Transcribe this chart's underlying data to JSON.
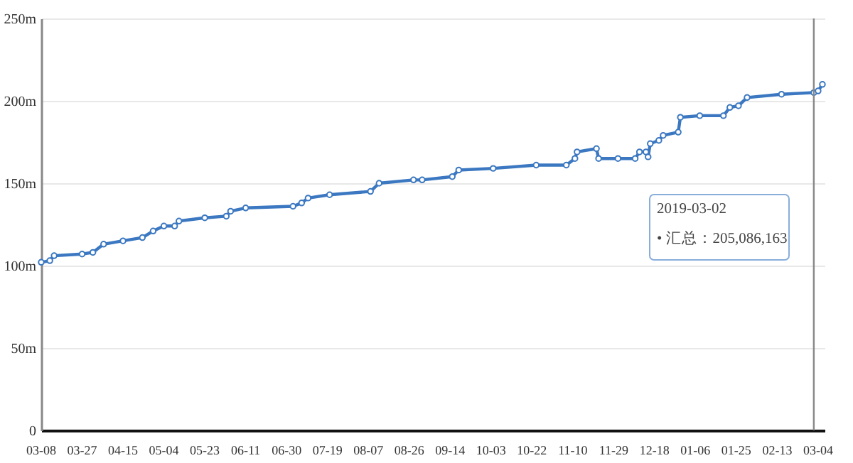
{
  "chart_data": {
    "type": "line",
    "x": [
      "2018-03-08",
      "2018-03-12",
      "2018-03-14",
      "2018-03-27",
      "2018-04-01",
      "2018-04-06",
      "2018-04-15",
      "2018-04-24",
      "2018-04-29",
      "2018-05-04",
      "2018-05-09",
      "2018-05-11",
      "2018-05-23",
      "2018-06-02",
      "2018-06-04",
      "2018-06-11",
      "2018-07-03",
      "2018-07-07",
      "2018-07-10",
      "2018-07-20",
      "2018-08-08",
      "2018-08-12",
      "2018-08-28",
      "2018-09-01",
      "2018-09-15",
      "2018-09-18",
      "2018-10-04",
      "2018-10-24",
      "2018-11-07",
      "2018-11-11",
      "2018-11-12",
      "2018-11-21",
      "2018-11-22",
      "2018-12-01",
      "2018-12-09",
      "2018-12-11",
      "2018-12-14",
      "2018-12-15",
      "2018-12-16",
      "2018-12-20",
      "2018-12-22",
      "2018-12-29",
      "2018-12-30",
      "2019-01-08",
      "2019-01-19",
      "2019-01-22",
      "2019-01-26",
      "2019-01-30",
      "2019-02-15",
      "2019-03-02",
      "2019-03-04",
      "2019-03-06"
    ],
    "series": [
      {
        "color": "#3b78c1",
        "values": [
          102,
          103,
          106,
          107,
          108,
          113,
          115,
          117,
          121,
          124,
          124,
          127,
          129,
          130,
          133,
          135,
          136,
          138,
          141,
          143,
          145,
          150,
          152,
          152,
          154,
          158,
          159,
          161,
          161,
          165,
          169,
          171,
          165,
          165,
          165,
          169,
          169,
          166,
          174,
          176,
          179,
          181,
          190,
          191,
          191,
          196,
          197,
          202,
          204,
          205,
          206,
          210
        ]
      }
    ],
    "xlim": [
      "2018-03-08",
      "2019-03-07"
    ],
    "xticks": [
      {
        "value": "2018-03-08",
        "label": "03-08"
      },
      {
        "value": "2018-03-27",
        "label": "03-27"
      },
      {
        "value": "2018-04-15",
        "label": "04-15"
      },
      {
        "value": "2018-05-04",
        "label": "05-04"
      },
      {
        "value": "2018-05-23",
        "label": "05-23"
      },
      {
        "value": "2018-06-11",
        "label": "06-11"
      },
      {
        "value": "2018-06-30",
        "label": "06-30"
      },
      {
        "value": "2018-07-19",
        "label": "07-19"
      },
      {
        "value": "2018-08-07",
        "label": "08-07"
      },
      {
        "value": "2018-08-26",
        "label": "08-26"
      },
      {
        "value": "2018-09-14",
        "label": "09-14"
      },
      {
        "value": "2018-10-03",
        "label": "10-03"
      },
      {
        "value": "2018-10-22",
        "label": "10-22"
      },
      {
        "value": "2018-11-10",
        "label": "11-10"
      },
      {
        "value": "2018-11-29",
        "label": "11-29"
      },
      {
        "value": "2018-12-18",
        "label": "12-18"
      },
      {
        "value": "2019-01-06",
        "label": "01-06"
      },
      {
        "value": "2019-01-25",
        "label": "01-25"
      },
      {
        "value": "2019-02-13",
        "label": "02-13"
      },
      {
        "value": "2019-03-04",
        "label": "03-04"
      }
    ],
    "ylim": [
      0,
      250
    ],
    "yticks": [
      0,
      {
        "value": 50,
        "label": "50m"
      },
      {
        "value": 100,
        "label": "100m"
      },
      {
        "value": 150,
        "label": "150m"
      },
      {
        "value": 200,
        "label": "200m"
      },
      {
        "value": 250,
        "label": "250m"
      }
    ],
    "grid": "y",
    "marker": "circle",
    "line_style": "solid",
    "ref_lines": [
      {
        "axis": "x",
        "value": "2019-03-02",
        "color": "#888888"
      }
    ],
    "annotations": [
      "2019-03-02\n• 汇总：205,086,163"
    ]
  }
}
